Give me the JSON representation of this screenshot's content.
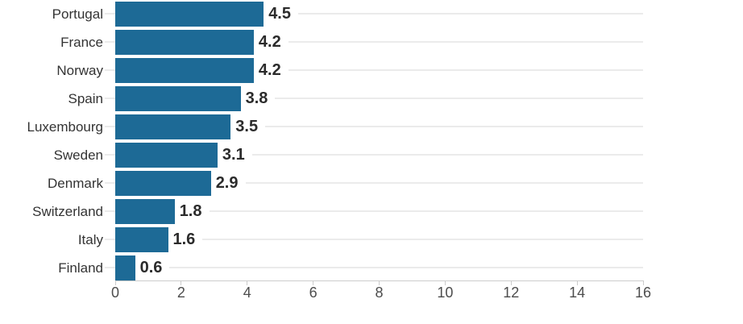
{
  "chart_data": {
    "type": "bar",
    "orientation": "horizontal",
    "title": "",
    "xlabel": "",
    "ylabel": "",
    "categories": [
      "Portugal",
      "France",
      "Norway",
      "Spain",
      "Luxembourg",
      "Sweden",
      "Denmark",
      "Switzerland",
      "Italy",
      "Finland"
    ],
    "values": [
      4.5,
      4.2,
      4.2,
      3.8,
      3.5,
      3.1,
      2.9,
      1.8,
      1.6,
      0.6
    ],
    "value_labels": [
      "4.5",
      "4.2",
      "4.2",
      "3.8",
      "3.5",
      "3.1",
      "2.9",
      "1.8",
      "1.6",
      "0.6"
    ],
    "xlim": [
      0,
      16
    ],
    "x_ticks": [
      0,
      2,
      4,
      6,
      8,
      10,
      12,
      14,
      16
    ],
    "x_tick_labels": [
      "0",
      "2",
      "4",
      "6",
      "8",
      "10",
      "12",
      "14",
      "16"
    ],
    "legend": "none",
    "grid": "row-center-lines",
    "colors": {
      "bar": "#1d6a96",
      "row_line": "#ebebeb",
      "axis_line": "#cccccc",
      "category_label": "#333333",
      "value_label": "#2b2b2b",
      "tick_label": "#4d4d4d",
      "background": "#ffffff"
    }
  }
}
